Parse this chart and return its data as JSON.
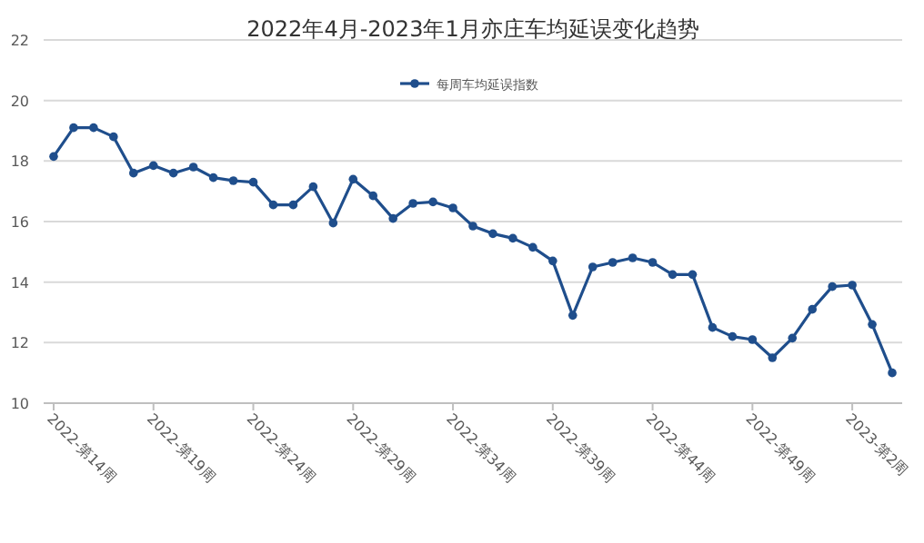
{
  "chart_data": {
    "type": "line",
    "title": "2022年4月-2023年1月亦庄车均延误变化趋势",
    "categories": [
      "2022-第14周",
      null,
      null,
      null,
      null,
      "2022-第19周",
      null,
      null,
      null,
      null,
      "2022-第24周",
      null,
      null,
      null,
      null,
      "2022-第29周",
      null,
      null,
      null,
      null,
      "2022-第34周",
      null,
      null,
      null,
      null,
      "2022-第39周",
      null,
      null,
      null,
      null,
      "2022-第44周",
      null,
      null,
      null,
      null,
      "2022-第49周",
      null,
      null,
      null,
      null,
      "2023-第2周",
      null,
      null
    ],
    "series": [
      {
        "name": "每周车均延误指数",
        "color": "#1f4e8c",
        "values": [
          18.15,
          19.1,
          19.1,
          18.8,
          17.6,
          17.85,
          17.6,
          17.8,
          17.45,
          17.35,
          17.3,
          16.55,
          16.55,
          17.15,
          15.95,
          17.4,
          16.85,
          16.1,
          16.6,
          16.65,
          16.45,
          15.85,
          15.6,
          15.45,
          15.15,
          14.7,
          12.9,
          14.5,
          14.65,
          14.8,
          14.65,
          14.25,
          14.25,
          12.5,
          12.2,
          12.1,
          11.5,
          12.15,
          13.1,
          13.85,
          13.9,
          12.6,
          11.0
        ]
      }
    ],
    "ylim": [
      10,
      22
    ],
    "yticks": [
      10,
      12,
      14,
      16,
      18,
      20,
      22
    ],
    "grid": "y",
    "legend": "top",
    "marker": "circle",
    "line_style": "solid"
  }
}
